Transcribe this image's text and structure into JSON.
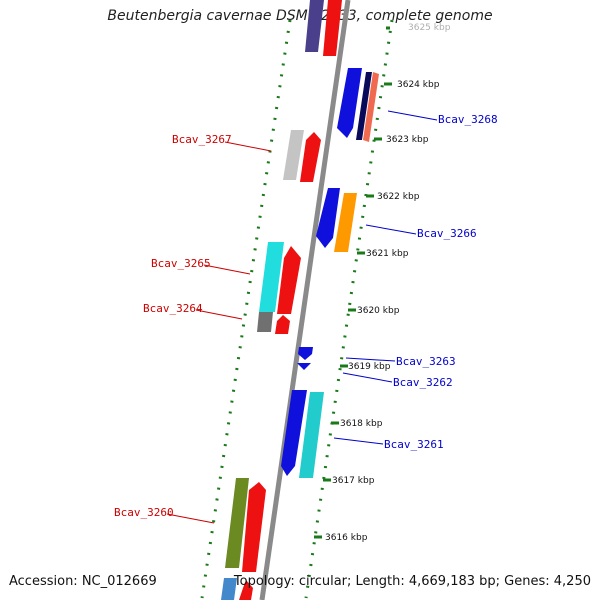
{
  "title": "Beutenbergia cavernae DSM 12333, complete genome",
  "accession": "Accession: NC_012669",
  "summary": "Topology: circular; Length: 4,669,183 bp; Genes: 4,250",
  "colors": {
    "backbone": "#8a8a8a",
    "dots": "#1a7a1a",
    "label_left": "#cc0000",
    "label_right": "#0000cc"
  },
  "kbp_ticks": [
    "3625 kbp",
    "3624 kbp",
    "3623 kbp",
    "3622 kbp",
    "3621 kbp",
    "3620 kbp",
    "3619 kbp",
    "3618 kbp",
    "3617 kbp",
    "3616 kbp"
  ],
  "gene_labels": {
    "left": [
      "Bcav_3267",
      "Bcav_3265",
      "Bcav_3264",
      "Bcav_3260"
    ],
    "right": [
      "Bcav_3268",
      "Bcav_3266",
      "Bcav_3263",
      "Bcav_3262",
      "Bcav_3261"
    ]
  }
}
